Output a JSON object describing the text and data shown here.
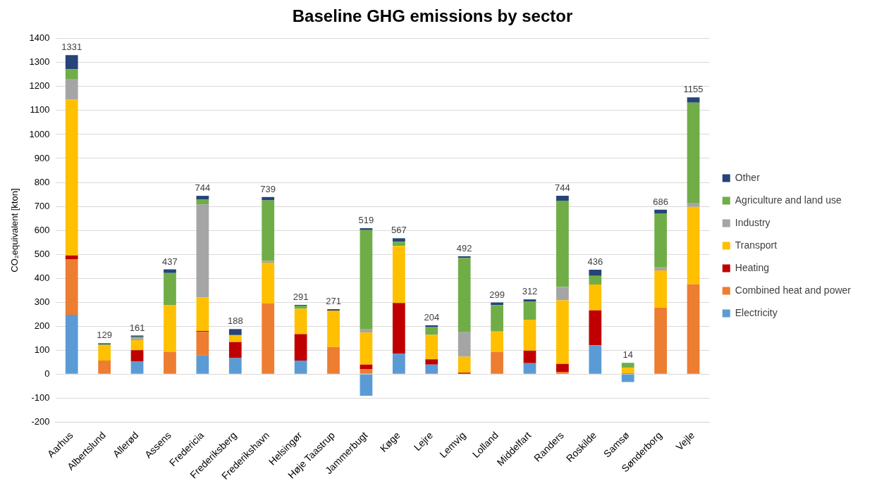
{
  "chart_data": {
    "type": "bar",
    "title": "Baseline GHG emissions by sector",
    "ylabel": "CO₂equivalent [kton]",
    "categories": [
      "Aarhus",
      "Albertslund",
      "Allerød",
      "Assens",
      "Fredericia",
      "Frederiksberg",
      "Frederikshavn",
      "Helsingør",
      "Høje Taastrup",
      "Jammerbugt",
      "Køge",
      "Lejre",
      "Lemvig",
      "Lolland",
      "Middelfart",
      "Randers",
      "Roskilde",
      "Samsø",
      "Sønderborg",
      "Vejle"
    ],
    "stacked": true,
    "ylim": [
      -200,
      1400
    ],
    "yticks": [
      -200,
      -100,
      0,
      100,
      200,
      300,
      400,
      500,
      600,
      700,
      800,
      900,
      1000,
      1100,
      1200,
      1300,
      1400
    ],
    "grid": "y",
    "legend": "right",
    "totals": [
      "1331",
      "129",
      "161",
      "437",
      "744",
      "188",
      "739",
      "291",
      "271",
      "519",
      "567",
      "204",
      "492",
      "299",
      "312",
      "744",
      "436",
      "14",
      "686",
      "1155"
    ],
    "series": [
      {
        "name": "Electricity",
        "color": "#5b9bd5",
        "values": [
          248,
          0,
          52,
          0,
          78,
          67,
          0,
          57,
          0,
          -90,
          85,
          40,
          0,
          0,
          46,
          0,
          121,
          -33,
          0,
          0
        ]
      },
      {
        "name": "Combined heat and power",
        "color": "#ed7d31",
        "values": [
          232,
          57,
          0,
          93,
          98,
          0,
          295,
          0,
          113,
          20,
          0,
          0,
          0,
          93,
          0,
          10,
          0,
          0,
          278,
          375
        ]
      },
      {
        "name": "Heating",
        "color": "#c00000",
        "values": [
          15,
          0,
          48,
          0,
          4,
          67,
          0,
          110,
          0,
          20,
          212,
          22,
          6,
          0,
          52,
          33,
          145,
          3,
          0,
          0
        ]
      },
      {
        "name": "Transport",
        "color": "#ffc000",
        "values": [
          650,
          65,
          42,
          196,
          140,
          29,
          170,
          106,
          152,
          134,
          238,
          102,
          67,
          85,
          129,
          265,
          108,
          24,
          155,
          323
        ]
      },
      {
        "name": "Industry",
        "color": "#a5a5a5",
        "values": [
          87,
          0,
          8,
          0,
          388,
          0,
          8,
          null,
          0,
          13,
          0,
          0,
          102,
          0,
          0,
          56,
          0,
          0,
          12,
          17
        ]
      },
      {
        "name": "Agriculture and land use",
        "color": "#70ad47",
        "values": [
          40,
          2,
          5,
          133,
          20,
          0,
          252,
          13,
          0,
          414,
          17,
          32,
          310,
          110,
          75,
          360,
          36,
          20,
          226,
          418
        ]
      },
      {
        "name": "Other",
        "color": "#264478",
        "values": [
          59,
          5,
          6,
          15,
          16,
          25,
          14,
          3,
          6,
          8,
          15,
          8,
          7,
          11,
          10,
          20,
          26,
          0,
          15,
          22
        ]
      }
    ]
  }
}
